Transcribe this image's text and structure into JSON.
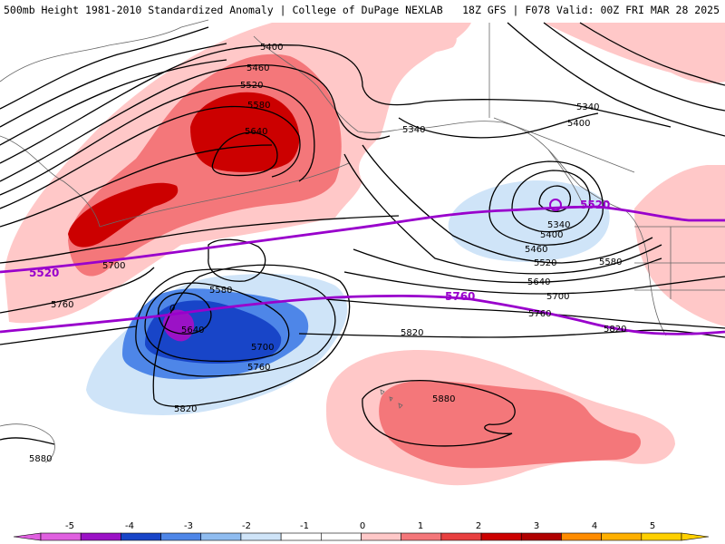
{
  "header": {
    "left": "500mb Height 1981-2010 Standardized Anomaly | College of DuPage NEXLAB",
    "right": "18Z GFS | F078 Valid: 00Z FRI MAR 28 2025"
  },
  "colors": {
    "anom_pos_1": "#ffc8c8",
    "anom_pos_2": "#f4777a",
    "anom_pos_3": "#cc0000",
    "anom_neg_1": "#cfe4f8",
    "anom_neg_2": "#4e86e8",
    "anom_neg_3": "#1845c8",
    "anom_neg_4": "#9b12c6",
    "highlight_contour": "#9900cc",
    "contour": "#000000"
  },
  "contour_labels": [
    {
      "id": "5400-a",
      "text": "5400"
    },
    {
      "id": "5460-a",
      "text": "5460"
    },
    {
      "id": "5520-a",
      "text": "5520"
    },
    {
      "id": "5580-a",
      "text": "5580"
    },
    {
      "id": "5640-a",
      "text": "5640"
    },
    {
      "id": "5340-a",
      "text": "5340"
    },
    {
      "id": "5340-b",
      "text": "5340"
    },
    {
      "id": "5400-b",
      "text": "5400"
    },
    {
      "id": "5340-c",
      "text": "5340"
    },
    {
      "id": "5400-c",
      "text": "5400"
    },
    {
      "id": "5460-b",
      "text": "5460"
    },
    {
      "id": "5520-b",
      "text": "5520"
    },
    {
      "id": "5580-b",
      "text": "5580"
    },
    {
      "id": "5640-b",
      "text": "5640"
    },
    {
      "id": "5700-a",
      "text": "5700"
    },
    {
      "id": "5760-a",
      "text": "5760"
    },
    {
      "id": "5820-a",
      "text": "5820"
    },
    {
      "id": "5700-b",
      "text": "5700"
    },
    {
      "id": "5760-b",
      "text": "5760"
    },
    {
      "id": "5580-c",
      "text": "5580"
    },
    {
      "id": "5640-c",
      "text": "5640"
    },
    {
      "id": "5700-c",
      "text": "5700"
    },
    {
      "id": "5760-c",
      "text": "5760"
    },
    {
      "id": "5820-b",
      "text": "5820"
    },
    {
      "id": "5820-c",
      "text": "5820"
    },
    {
      "id": "5880-a",
      "text": "5880"
    },
    {
      "id": "5880-b",
      "text": "5880"
    }
  ],
  "highlight_labels": [
    {
      "id": "5520-west",
      "text": "5520"
    },
    {
      "id": "5520-east",
      "text": "5520"
    },
    {
      "id": "5760-mid",
      "text": "5760"
    }
  ],
  "low_marker": "0",
  "colorbar": {
    "ticks": [
      "-5",
      "-4",
      "-3",
      "-2",
      "-1",
      "0",
      "1",
      "2",
      "3",
      "4",
      "5"
    ],
    "colors": [
      "#e060e0",
      "#9b12c6",
      "#1845c8",
      "#4e86e8",
      "#8fbcf0",
      "#cfe4f8",
      "#ffffff",
      "#ffffff",
      "#ffc8c8",
      "#f4777a",
      "#e84040",
      "#cc0000",
      "#b00000",
      "#ff8c00",
      "#ffb000",
      "#ffd000"
    ]
  }
}
